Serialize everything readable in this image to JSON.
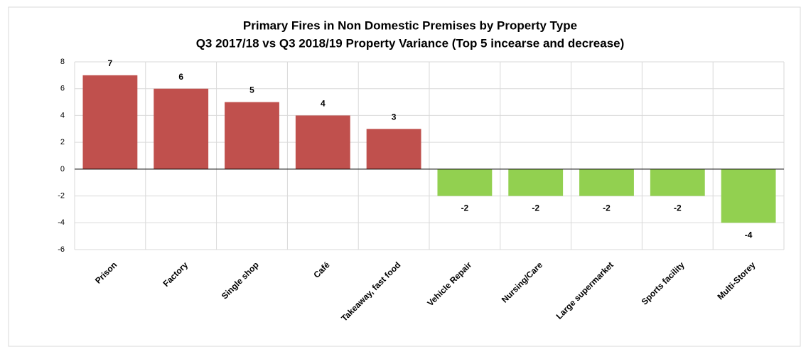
{
  "chart_data": {
    "type": "bar",
    "title": "Primary Fires in Non Domestic Premises by Property Type",
    "subtitle": "Q3 2017/18 vs Q3 2018/19 Property Variance (Top 5 incearse and decrease)",
    "categories": [
      "Prison",
      "Factory",
      "Single shop",
      "Café",
      "Takeaway, fast food",
      "Vehicle Repair",
      "Nursing/Care",
      "Large supermarket",
      "Sports facility",
      "Multi-Storey"
    ],
    "values": [
      7,
      6,
      5,
      4,
      3,
      -2,
      -2,
      -2,
      -2,
      -4
    ],
    "colors": [
      "#c0504d",
      "#c0504d",
      "#c0504d",
      "#c0504d",
      "#c0504d",
      "#92d050",
      "#92d050",
      "#92d050",
      "#92d050",
      "#92d050"
    ],
    "ylim": [
      -6,
      8
    ],
    "yticks": [
      -6,
      -4,
      -2,
      0,
      2,
      4,
      6,
      8
    ],
    "grid": true
  }
}
